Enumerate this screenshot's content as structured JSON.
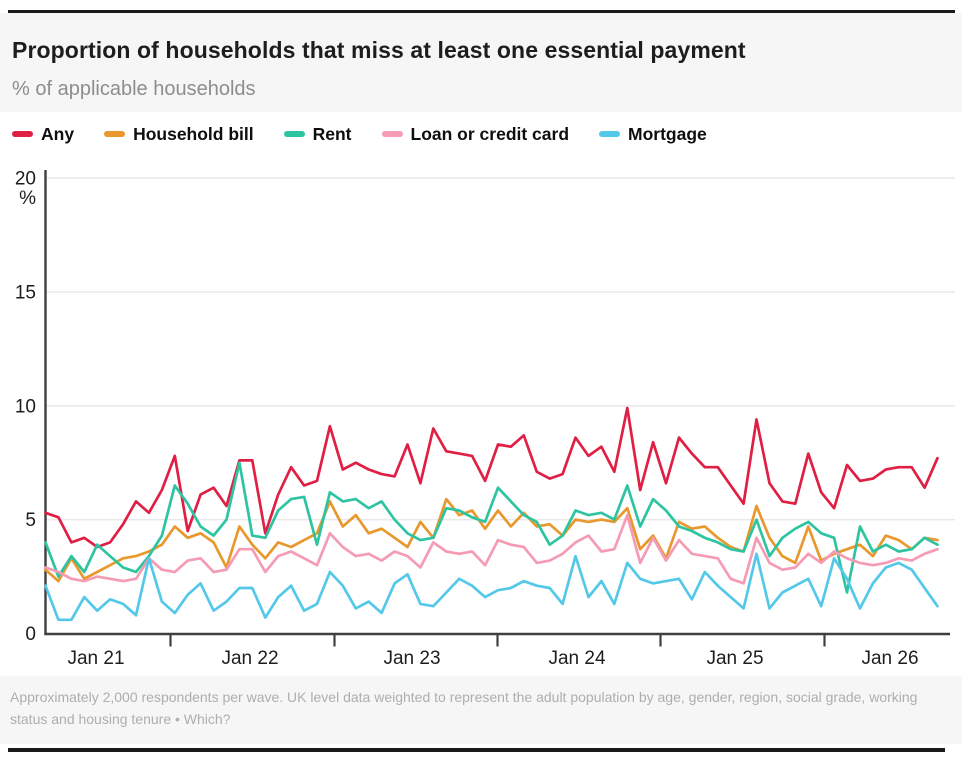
{
  "header": {
    "title": "Proportion of households that miss at least one essential payment",
    "subtitle": "% of applicable households"
  },
  "legend": {
    "items": [
      {
        "label": "Any"
      },
      {
        "label": "Household bill"
      },
      {
        "label": "Rent"
      },
      {
        "label": "Loan or credit card"
      },
      {
        "label": "Mortgage"
      }
    ]
  },
  "footer": {
    "note": "Approximately 2,000 respondents per wave. UK level data weighted to represent the adult population by age, gender, region, social grade, working status and housing tenure • Which?"
  },
  "chart_data": {
    "type": "line",
    "title": "Proportion of households that miss at least one essential payment",
    "ylabel": "%",
    "ylim": [
      0,
      20
    ],
    "y_ticks": [
      0,
      5,
      10,
      15,
      20
    ],
    "x_tick_labels": [
      "Jan 21",
      "Jan 22",
      "Jan 23",
      "Jan 24",
      "Jan 25",
      "Jan 26"
    ],
    "grid": "horizontal",
    "legend_position": "top",
    "x": [
      "Sep 20",
      "Oct 20",
      "Nov 20",
      "Dec 20",
      "Jan 21",
      "Feb 21",
      "Mar 21",
      "Apr 21",
      "May 21",
      "Jun 21",
      "Jul 21",
      "Aug 21",
      "Sep 21",
      "Oct 21",
      "Nov 21",
      "Dec 21",
      "Jan 22",
      "Feb 22",
      "Mar 22",
      "Apr 22",
      "May 22",
      "Jun 22",
      "Jul 22",
      "Aug 22",
      "Sep 22",
      "Oct 22",
      "Nov 22",
      "Dec 22",
      "Jan 23",
      "Feb 23",
      "Mar 23",
      "Apr 23",
      "May 23",
      "Jun 23",
      "Jul 23",
      "Aug 23",
      "Sep 23",
      "Oct 23",
      "Nov 23",
      "Dec 23",
      "Jan 24",
      "Feb 24",
      "Mar 24",
      "Apr 24",
      "May 24",
      "Jun 24",
      "Jul 24",
      "Aug 24",
      "Sep 24",
      "Oct 24",
      "Nov 24",
      "Dec 24",
      "Jan 25",
      "Feb 25",
      "Mar 25",
      "Apr 25",
      "May 25",
      "Jun 25",
      "Jul 25",
      "Aug 25",
      "Sep 25",
      "Oct 25",
      "Nov 25",
      "Dec 25",
      "Jan 26",
      "Feb 26",
      "Mar 26",
      "Apr 26",
      "May 26",
      "Jun 26"
    ],
    "series": [
      {
        "name": "Any",
        "color": "#e01f45",
        "values": [
          5.3,
          5.1,
          4.0,
          4.2,
          3.8,
          4.0,
          4.8,
          5.8,
          5.3,
          6.3,
          7.8,
          4.5,
          6.1,
          6.4,
          5.6,
          7.6,
          7.6,
          4.4,
          6.1,
          7.3,
          6.5,
          6.7,
          9.1,
          7.2,
          7.5,
          7.2,
          7.0,
          6.9,
          8.3,
          6.6,
          9.0,
          8.0,
          7.9,
          7.8,
          6.7,
          8.3,
          8.2,
          8.7,
          7.1,
          6.8,
          7.0,
          8.6,
          7.8,
          8.2,
          7.1,
          9.9,
          6.3,
          8.4,
          6.6,
          8.6,
          7.9,
          7.3,
          7.3,
          6.5,
          5.7,
          9.4,
          6.6,
          5.8,
          5.7,
          7.9,
          6.2,
          5.5,
          7.4,
          6.7,
          6.8,
          7.2,
          7.3,
          7.3,
          6.4,
          7.7
        ]
      },
      {
        "name": "Household bill",
        "color": "#e8982c",
        "values": [
          2.8,
          2.3,
          3.3,
          2.4,
          2.7,
          3.0,
          3.3,
          3.4,
          3.6,
          3.9,
          4.7,
          4.2,
          4.4,
          4.0,
          2.9,
          4.7,
          3.9,
          3.3,
          4.0,
          3.8,
          4.1,
          4.4,
          5.8,
          4.7,
          5.2,
          4.4,
          4.6,
          4.2,
          3.8,
          4.9,
          4.2,
          5.9,
          5.2,
          5.4,
          4.6,
          5.4,
          4.7,
          5.3,
          4.7,
          4.8,
          4.3,
          5.0,
          4.9,
          5.0,
          4.9,
          5.5,
          3.7,
          4.3,
          3.3,
          4.9,
          4.6,
          4.7,
          4.2,
          3.8,
          3.6,
          5.6,
          4.2,
          3.4,
          3.1,
          4.7,
          3.2,
          3.5,
          3.7,
          3.9,
          3.4,
          4.3,
          4.1,
          3.7,
          4.2,
          4.1
        ]
      },
      {
        "name": "Rent",
        "color": "#2ec4a1",
        "values": [
          4.0,
          2.5,
          3.4,
          2.7,
          3.9,
          3.4,
          2.9,
          2.7,
          3.4,
          4.3,
          6.5,
          5.7,
          4.7,
          4.3,
          5.0,
          7.5,
          4.3,
          4.2,
          5.4,
          5.9,
          6.0,
          3.9,
          6.2,
          5.8,
          5.9,
          5.5,
          5.8,
          5.0,
          4.4,
          4.1,
          4.2,
          5.5,
          5.4,
          5.1,
          4.9,
          6.4,
          5.8,
          5.2,
          4.9,
          3.9,
          4.3,
          5.4,
          5.2,
          5.3,
          5.0,
          6.5,
          4.7,
          5.9,
          5.4,
          4.7,
          4.5,
          4.2,
          4.0,
          3.7,
          3.6,
          5.0,
          3.4,
          4.2,
          4.6,
          4.9,
          4.4,
          4.2,
          1.8,
          4.7,
          3.6,
          3.9,
          3.6,
          3.7,
          4.2,
          3.9
        ]
      },
      {
        "name": "Loan or credit card",
        "color": "#f59cb4",
        "values": [
          2.9,
          2.7,
          2.4,
          2.3,
          2.5,
          2.4,
          2.3,
          2.4,
          3.3,
          2.8,
          2.7,
          3.2,
          3.3,
          2.7,
          2.8,
          3.7,
          3.7,
          2.7,
          3.4,
          3.6,
          3.3,
          3.0,
          4.4,
          3.8,
          3.4,
          3.5,
          3.2,
          3.6,
          3.4,
          2.9,
          4.0,
          3.6,
          3.5,
          3.6,
          3.0,
          4.1,
          3.9,
          3.8,
          3.1,
          3.2,
          3.5,
          4.0,
          4.3,
          3.6,
          3.7,
          5.2,
          3.1,
          4.2,
          3.2,
          4.1,
          3.5,
          3.4,
          3.3,
          2.4,
          2.2,
          4.2,
          3.1,
          2.8,
          2.9,
          3.5,
          3.1,
          3.6,
          3.3,
          3.1,
          3.0,
          3.1,
          3.3,
          3.2,
          3.5,
          3.7
        ]
      },
      {
        "name": "Mortgage",
        "color": "#54c8e9",
        "values": [
          2.1,
          0.6,
          0.6,
          1.6,
          1.0,
          1.5,
          1.3,
          0.8,
          3.3,
          1.4,
          0.9,
          1.7,
          2.2,
          1.0,
          1.4,
          2.0,
          2.0,
          0.7,
          1.6,
          2.1,
          1.0,
          1.3,
          2.7,
          2.1,
          1.1,
          1.4,
          0.9,
          2.2,
          2.6,
          1.3,
          1.2,
          1.8,
          2.4,
          2.1,
          1.6,
          1.9,
          2.0,
          2.3,
          2.1,
          2.0,
          1.3,
          3.4,
          1.6,
          2.3,
          1.3,
          3.1,
          2.4,
          2.2,
          2.3,
          2.4,
          1.5,
          2.7,
          2.1,
          1.6,
          1.1,
          3.5,
          1.1,
          1.8,
          2.1,
          2.4,
          1.2,
          3.3,
          2.4,
          1.1,
          2.2,
          2.9,
          3.1,
          2.8,
          2.0,
          1.2
        ]
      }
    ]
  }
}
